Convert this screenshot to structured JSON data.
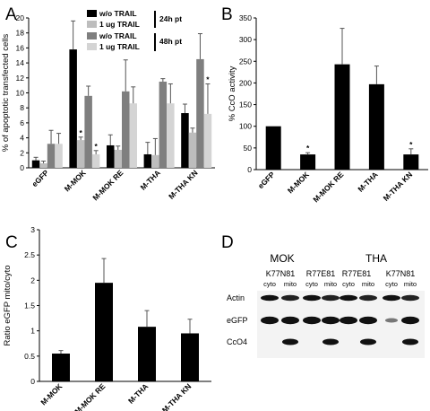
{
  "panels": {
    "A": {
      "label": "A"
    },
    "B": {
      "label": "B"
    },
    "C": {
      "label": "C"
    },
    "D": {
      "label": "D"
    }
  },
  "chart_data": [
    {
      "panel": "A",
      "type": "bar",
      "ylabel": "% of apoptotic transfected cells",
      "ylim": [
        0,
        20
      ],
      "yticks": [
        "0",
        "2",
        "4",
        "6",
        "8",
        "10",
        "12",
        "14",
        "16",
        "18",
        "20"
      ],
      "categories": [
        "eGFP",
        "M-MOK",
        "M-MOK RE",
        "M-THA",
        "M-THA KN"
      ],
      "series": [
        {
          "name": "w/o TRAIL",
          "color": "#000000",
          "values": [
            1.0,
            15.8,
            3.0,
            1.8,
            7.3
          ],
          "errors": [
            0.4,
            3.8,
            1.4,
            1.6,
            1.2
          ]
        },
        {
          "name": "1 ug TRAIL",
          "color": "#bdbdbd",
          "values": [
            0.6,
            3.7,
            2.4,
            1.7,
            4.7
          ],
          "errors": [
            0.3,
            0.4,
            0.5,
            2.2,
            0.6
          ]
        },
        {
          "name": "w/o TRAIL",
          "color": "#7f7f7f",
          "values": [
            3.2,
            9.6,
            10.2,
            11.5,
            14.5
          ],
          "errors": [
            1.8,
            1.3,
            4.2,
            0.4,
            3.4
          ]
        },
        {
          "name": "1 ug TRAIL",
          "color": "#d4d4d4",
          "values": [
            3.2,
            1.8,
            8.6,
            8.6,
            7.2
          ],
          "errors": [
            1.4,
            0.5,
            2.2,
            2.6,
            4.0
          ]
        }
      ],
      "legend_groups": [
        "24h pt",
        "48h pt"
      ],
      "annotations": [
        {
          "text": "*",
          "category": "M-MOK",
          "series": 1
        },
        {
          "text": "*",
          "category": "M-MOK",
          "series": 3
        },
        {
          "text": "*",
          "category": "M-THA KN",
          "series": 3
        }
      ]
    },
    {
      "panel": "B",
      "type": "bar",
      "ylabel": "% CcO activity",
      "ylim": [
        0,
        350
      ],
      "yticks": [
        "0",
        "50",
        "100",
        "150",
        "200",
        "250",
        "300",
        "350"
      ],
      "categories": [
        "eGFP",
        "M-MOK",
        "M-MOK RE",
        "M-THA",
        "M-THA KN"
      ],
      "series": [
        {
          "name": "",
          "color": "#000000",
          "values": [
            100,
            35,
            243,
            197,
            35
          ],
          "errors": [
            0,
            4,
            83,
            42,
            13
          ]
        }
      ],
      "annotations": [
        {
          "text": "*",
          "category": "M-MOK",
          "series": 0
        },
        {
          "text": "*",
          "category": "M-THA KN",
          "series": 0
        }
      ]
    },
    {
      "panel": "C",
      "type": "bar",
      "ylabel": "Ratio eGFP mito/cyto",
      "ylim": [
        0,
        3
      ],
      "yticks": [
        "0",
        "0.5",
        "1",
        "1.5",
        "2",
        "2.5",
        "3"
      ],
      "categories": [
        "M-MOK",
        "M-MOK RE",
        "M-THA",
        "M-THA KN"
      ],
      "series": [
        {
          "name": "",
          "color": "#000000",
          "values": [
            0.55,
            1.95,
            1.08,
            0.95
          ],
          "errors": [
            0.06,
            0.48,
            0.32,
            0.28
          ]
        }
      ]
    }
  ],
  "blot": {
    "groups": [
      "MOK",
      "THA"
    ],
    "mutants": [
      "K77N81",
      "R77E81",
      "R77E81",
      "K77N81"
    ],
    "fractions": [
      "cyto",
      "mito",
      "cyto",
      "mito",
      "cyto",
      "mito",
      "cyto",
      "mito"
    ],
    "rows": [
      "Actin",
      "eGFP",
      "CcO4"
    ]
  }
}
